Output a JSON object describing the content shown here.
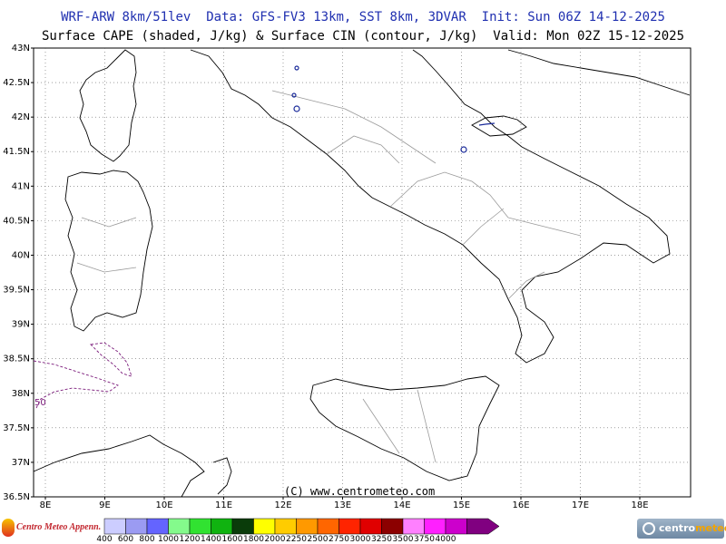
{
  "header": {
    "line1": "WRF-ARW 8km/51lev  Data: GFS-FV3 13km, SST 8km, 3DVAR  Init: Sun 06Z 14-12-2025",
    "line2": "Surface CAPE (shaded, J/kg) & Surface CIN (contour, J/kg)  Valid: Mon 02Z 15-12-2025"
  },
  "map": {
    "lat_labels": [
      "43N",
      "42.5N",
      "42N",
      "41.5N",
      "41N",
      "40.5N",
      "40N",
      "39.5N",
      "39N",
      "38.5N",
      "38N",
      "37.5N",
      "37N",
      "36.5N"
    ],
    "lon_labels": [
      "8E",
      "9E",
      "10E",
      "11E",
      "12E",
      "13E",
      "14E",
      "15E",
      "16E",
      "17E",
      "18E"
    ],
    "copyright": "(C) www.centrometeo.com",
    "cin_contour_label": "50"
  },
  "legend": {
    "colors": [
      "#cccdff",
      "#9b9bf2",
      "#6464ff",
      "#84fa8c",
      "#31e231",
      "#10b310",
      "#0a3c0a",
      "#ffff00",
      "#ffcc00",
      "#ff9900",
      "#ff6600",
      "#ff2400",
      "#e00000",
      "#8c0000",
      "#ff80ff",
      "#ff20ff",
      "#cc00cc",
      "#800080"
    ],
    "labels": [
      "400",
      "600",
      "800",
      "1000",
      "1200",
      "1400",
      "1600",
      "1800",
      "2000",
      "2250",
      "2500",
      "2750",
      "3000",
      "3250",
      "3500",
      "3750",
      "4000"
    ]
  },
  "logos": {
    "left_text": "Centro Meteo Appenn.",
    "right_text_a": "centro",
    "right_text_b": "meteo"
  }
}
